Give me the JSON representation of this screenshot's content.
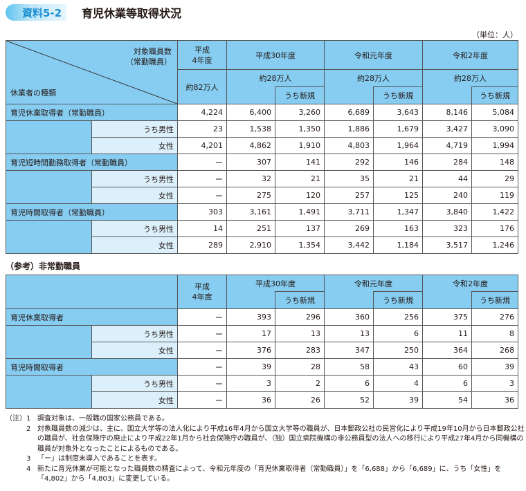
{
  "header": {
    "badge": "資料5-2",
    "title": "育児休業等取得状況",
    "unit": "（単位：人）"
  },
  "table1": {
    "corner_top": [
      "対象職員数",
      "（常勤職員）"
    ],
    "corner_bottom": "休業者の種類",
    "year_h4": [
      "平成",
      "4年度"
    ],
    "staff_h4": "約82万人",
    "years": [
      "平成30年度",
      "令和元年度",
      "令和2年度"
    ],
    "staff": [
      "約28万人",
      "約28万人",
      "約28万人"
    ],
    "new_label": "うち新規",
    "groups": [
      {
        "label": "育児休業取得者（常勤職員）",
        "rows": [
          {
            "label": "",
            "values": [
              "4,224",
              "6,400",
              "3,260",
              "6,689",
              "3,643",
              "8,146",
              "5,084"
            ]
          },
          {
            "label": "うち男性",
            "values": [
              "23",
              "1,538",
              "1,350",
              "1,886",
              "1,679",
              "3,427",
              "3,090"
            ]
          },
          {
            "label": "女性",
            "values": [
              "4,201",
              "4,862",
              "1,910",
              "4,803",
              "1,964",
              "4,719",
              "1,994"
            ]
          }
        ]
      },
      {
        "label": "育児短時間勤務取得者（常勤職員）",
        "rows": [
          {
            "label": "",
            "values": [
              "ー",
              "307",
              "141",
              "292",
              "146",
              "284",
              "148"
            ]
          },
          {
            "label": "うち男性",
            "values": [
              "ー",
              "32",
              "21",
              "35",
              "21",
              "44",
              "29"
            ]
          },
          {
            "label": "女性",
            "values": [
              "ー",
              "275",
              "120",
              "257",
              "125",
              "240",
              "119"
            ]
          }
        ]
      },
      {
        "label": "育児時間取得者（常勤職員）",
        "rows": [
          {
            "label": "",
            "values": [
              "303",
              "3,161",
              "1,491",
              "3,711",
              "1,347",
              "3,840",
              "1,422"
            ]
          },
          {
            "label": "うち男性",
            "values": [
              "14",
              "251",
              "137",
              "269",
              "163",
              "323",
              "176"
            ]
          },
          {
            "label": "女性",
            "values": [
              "289",
              "2,910",
              "1,354",
              "3,442",
              "1,184",
              "3,517",
              "1,246"
            ]
          }
        ]
      }
    ]
  },
  "section2_title": "（参考）非常勤職員",
  "table2": {
    "year_h4": [
      "平成",
      "4年度"
    ],
    "years": [
      "平成30年度",
      "令和元年度",
      "令和2年度"
    ],
    "new_label": "うち新規",
    "groups": [
      {
        "label": "育児休業取得者",
        "rows": [
          {
            "label": "",
            "values": [
              "ー",
              "393",
              "296",
              "360",
              "256",
              "375",
              "276"
            ]
          },
          {
            "label": "うち男性",
            "values": [
              "ー",
              "17",
              "13",
              "13",
              "6",
              "11",
              "8"
            ]
          },
          {
            "label": "女性",
            "values": [
              "ー",
              "376",
              "283",
              "347",
              "250",
              "364",
              "268"
            ]
          }
        ]
      },
      {
        "label": "育児時間取得者",
        "rows": [
          {
            "label": "",
            "values": [
              "ー",
              "39",
              "28",
              "58",
              "43",
              "60",
              "39"
            ]
          },
          {
            "label": "うち男性",
            "values": [
              "ー",
              "3",
              "2",
              "6",
              "4",
              "6",
              "3"
            ]
          },
          {
            "label": "女性",
            "values": [
              "ー",
              "36",
              "26",
              "52",
              "39",
              "54",
              "36"
            ]
          }
        ]
      }
    ]
  },
  "notes": {
    "prefix": "（注）",
    "items": [
      {
        "num": "1",
        "text": "調査対象は、一般職の国家公務員である。"
      },
      {
        "num": "2",
        "text": "対象職員数の減少は、主に、国立大学等の法人化により平成16年4月から国立大学等の職員が、日本郵政公社の民営化により平成19年10月から日本郵政公社の職員が、社会保険庁の廃止により平成22年1月から社会保険庁の職員が、（独）国立病院機構の非公務員型の法人への移行により平成27年4月から同機構の職員が対象外となったことによるものである。"
      },
      {
        "num": "3",
        "text": "「ー」は制度未導入であることを表す。"
      },
      {
        "num": "4",
        "text": "新たに育児休業が可能となった職員数の精査によって、令和元年度の「育児休業取得者（常勤職員）」を「6,688」から「6,689」に、うち「女性」を「4,802」から「4,803」に変更している。"
      }
    ]
  },
  "colors": {
    "header_blue": "#87cdf2",
    "sub_blue": "#dcf0fb",
    "badge_text": "#1a8fd0"
  }
}
